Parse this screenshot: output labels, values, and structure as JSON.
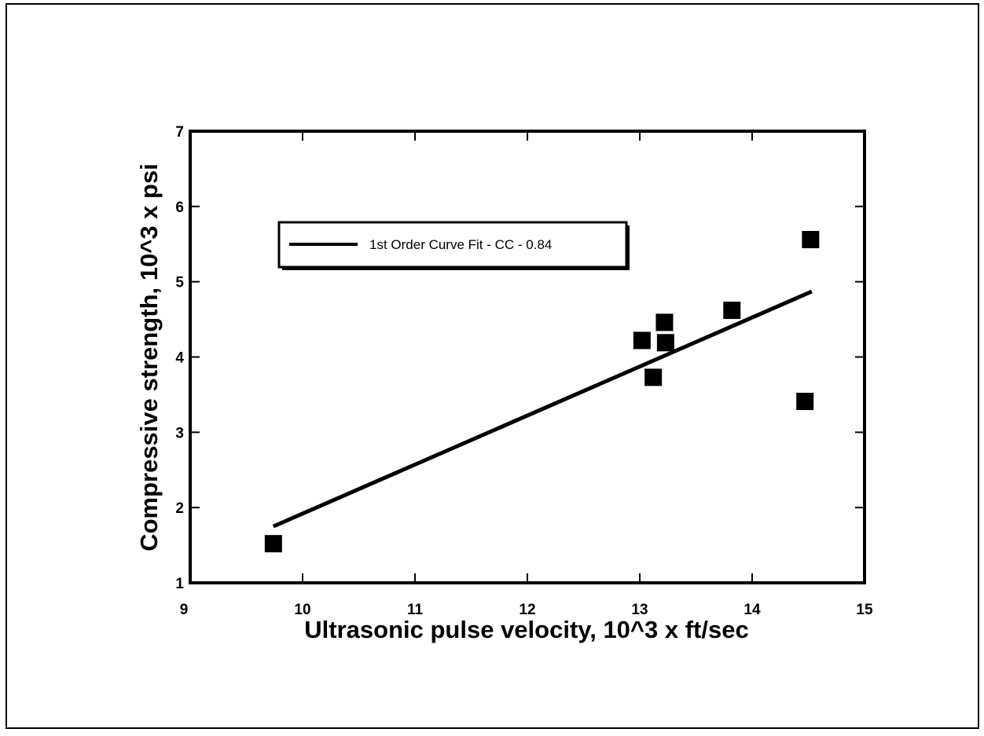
{
  "chart_data": {
    "type": "scatter",
    "xlabel": "Ultrasonic pulse velocity, 10^3 x ft/sec",
    "ylabel": "Compressive strength, 10^3 x psi",
    "xlim": [
      9,
      15
    ],
    "xticks": [
      9,
      10,
      11,
      12,
      13,
      14,
      15
    ],
    "ylim": [
      1,
      7
    ],
    "yticks": [
      1,
      2,
      3,
      4,
      5,
      6,
      7
    ],
    "points": {
      "color": "#000000",
      "x": [
        9.74,
        13.02,
        13.22,
        13.23,
        13.12,
        13.82,
        14.52,
        14.47
      ],
      "values": [
        1.52,
        4.22,
        4.46,
        4.19,
        3.73,
        4.62,
        5.56,
        3.41
      ]
    },
    "fit": {
      "name": "1st Order Curve Fit - CC - 0.84",
      "color": "#000000",
      "x": [
        9.74,
        14.53
      ],
      "values": [
        1.75,
        4.87
      ]
    }
  }
}
